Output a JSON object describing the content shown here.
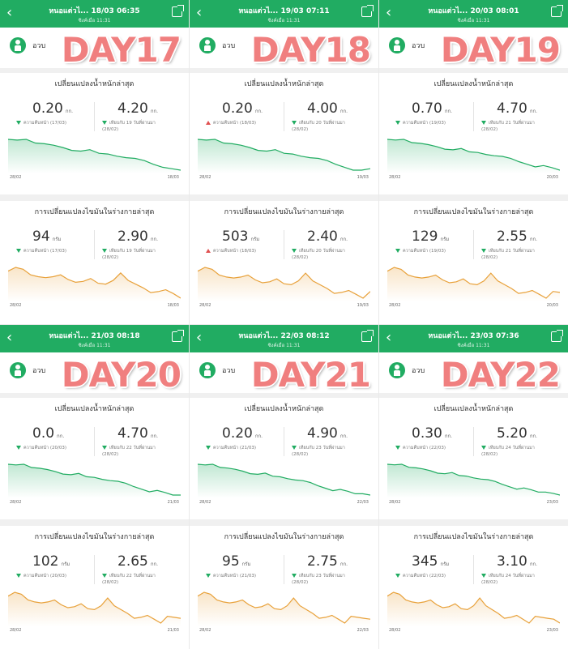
{
  "header": {
    "back_icon": "back-arrow-icon",
    "share_icon": "share-icon",
    "subtitle": "ซิงค์เมื่อ 11:31",
    "accent": "#21ac62"
  },
  "user": {
    "name": "อวบ",
    "avatar_icon": "person-icon"
  },
  "weight_title": "เปลี่ยนแปลงน้ำหนักล่าสุด",
  "fat_title": "การเปลี่ยนแปลงไขมันในร่างกายล่าสุด",
  "colors": {
    "weight_line": "#21ac62",
    "fat_line": "#e8a13a",
    "day_label": "#f07f7f",
    "decrease": "#21ac62",
    "increase": "#e05050"
  },
  "panels": [
    {
      "title": "หนอแต่วไ... 18/03 06:35",
      "day": "DAY17",
      "weight": {
        "value": "0.20",
        "unit": "กก.",
        "note": "ความคืบหน้า (17/03)",
        "dir": "down",
        "total": "4.20",
        "total_unit": "กก.",
        "total_note1": "เทียบกับ 19 วันที่ผ่านมา",
        "total_note2": "(28/02)"
      },
      "fat": {
        "value": "94",
        "unit": "กรัม",
        "note": "ความคืบหน้า (17/03)",
        "dir": "down",
        "total": "2.90",
        "total_unit": "กก.",
        "total_note1": "เทียบกับ 19 วันที่ผ่านมา",
        "total_note2": "(28/02)"
      },
      "x_start": "28/02",
      "x_end": "18/03",
      "weight_series": [
        75.5,
        75.4,
        75.5,
        75.0,
        74.9,
        74.7,
        74.4,
        74.0,
        73.9,
        74.1,
        73.6,
        73.5,
        73.2,
        73.0,
        72.9,
        72.6,
        72.1,
        71.7,
        71.5,
        71.3
      ],
      "fat_series": [
        30.0,
        30.4,
        30.2,
        29.6,
        29.4,
        29.3,
        29.4,
        29.6,
        29.1,
        28.8,
        28.9,
        29.2,
        28.7,
        28.6,
        29.0,
        29.8,
        29.0,
        28.6,
        28.2,
        27.7,
        27.8,
        28.0,
        27.6,
        27.1
      ]
    },
    {
      "title": "หนอแต่วไ... 19/03 07:11",
      "day": "DAY18",
      "weight": {
        "value": "0.20",
        "unit": "กก.",
        "note": "ความคืบหน้า (18/03)",
        "dir": "up",
        "total": "4.00",
        "total_unit": "กก.",
        "total_note1": "เทียบกับ 20 วันที่ผ่านมา",
        "total_note2": "(28/02)"
      },
      "fat": {
        "value": "503",
        "unit": "กรัม",
        "note": "ความคืบหน้า (18/03)",
        "dir": "up",
        "total": "2.40",
        "total_unit": "กก.",
        "total_note1": "เทียบกับ 20 วันที่ผ่านมา",
        "total_note2": "(28/02)"
      },
      "x_start": "28/02",
      "x_end": "19/03",
      "weight_series": [
        75.5,
        75.4,
        75.5,
        75.0,
        74.9,
        74.7,
        74.4,
        74.0,
        73.9,
        74.1,
        73.6,
        73.5,
        73.2,
        73.0,
        72.9,
        72.6,
        72.1,
        71.7,
        71.3,
        71.3,
        71.5
      ],
      "fat_series": [
        30.0,
        30.4,
        30.2,
        29.6,
        29.4,
        29.3,
        29.4,
        29.6,
        29.1,
        28.8,
        28.9,
        29.2,
        28.7,
        28.6,
        29.0,
        29.8,
        29.0,
        28.6,
        28.2,
        27.7,
        27.8,
        28.0,
        27.6,
        27.2,
        27.9
      ]
    },
    {
      "title": "หนอแต่วไ... 20/03 08:01",
      "day": "DAY19",
      "weight": {
        "value": "0.70",
        "unit": "กก.",
        "note": "ความคืบหน้า (19/03)",
        "dir": "down",
        "total": "4.70",
        "total_unit": "กก.",
        "total_note1": "เทียบกับ 21 วันที่ผ่านมา",
        "total_note2": "(28/02)"
      },
      "fat": {
        "value": "129",
        "unit": "กรัม",
        "note": "ความคืบหน้า (19/03)",
        "dir": "down",
        "total": "2.55",
        "total_unit": "กก.",
        "total_note1": "เทียบกับ 21 วันที่ผ่านมา",
        "total_note2": "(28/02)"
      },
      "x_start": "28/02",
      "x_end": "20/03",
      "weight_series": [
        75.5,
        75.4,
        75.5,
        75.0,
        74.9,
        74.7,
        74.4,
        74.0,
        73.9,
        74.1,
        73.6,
        73.5,
        73.2,
        73.0,
        72.9,
        72.6,
        72.1,
        71.7,
        71.3,
        71.5,
        71.2,
        70.8
      ],
      "fat_series": [
        30.0,
        30.4,
        30.2,
        29.6,
        29.4,
        29.3,
        29.4,
        29.6,
        29.1,
        28.8,
        28.9,
        29.2,
        28.7,
        28.6,
        29.0,
        29.8,
        29.0,
        28.6,
        28.2,
        27.7,
        27.8,
        28.0,
        27.6,
        27.2,
        27.9,
        27.8
      ]
    },
    {
      "title": "หนอแต่วไ... 21/03 08:18",
      "day": "DAY20",
      "weight": {
        "value": "0.0",
        "unit": "กก.",
        "note": "ความคืบหน้า (20/03)",
        "dir": "down",
        "total": "4.70",
        "total_unit": "กก.",
        "total_note1": "เทียบกับ 22 วันที่ผ่านมา",
        "total_note2": "(28/02)"
      },
      "fat": {
        "value": "102",
        "unit": "กรัม",
        "note": "ความคืบหน้า (20/03)",
        "dir": "down",
        "total": "2.65",
        "total_unit": "กก.",
        "total_note1": "เทียบกับ 22 วันที่ผ่านมา",
        "total_note2": "(28/02)"
      },
      "x_start": "28/02",
      "x_end": "21/03",
      "weight_series": [
        75.5,
        75.4,
        75.5,
        75.0,
        74.9,
        74.7,
        74.4,
        74.0,
        73.9,
        74.1,
        73.6,
        73.5,
        73.2,
        73.0,
        72.9,
        72.6,
        72.1,
        71.7,
        71.3,
        71.5,
        71.2,
        70.8,
        70.8
      ],
      "fat_series": [
        30.0,
        30.4,
        30.2,
        29.6,
        29.4,
        29.3,
        29.4,
        29.6,
        29.1,
        28.8,
        28.9,
        29.2,
        28.7,
        28.6,
        29.0,
        29.8,
        29.0,
        28.6,
        28.2,
        27.7,
        27.8,
        28.0,
        27.6,
        27.2,
        27.9,
        27.8,
        27.7
      ]
    },
    {
      "title": "หนอแต่วไ... 22/03 08:12",
      "day": "DAY21",
      "weight": {
        "value": "0.20",
        "unit": "กก.",
        "note": "ความคืบหน้า (21/03)",
        "dir": "down",
        "total": "4.90",
        "total_unit": "กก.",
        "total_note1": "เทียบกับ 23 วันที่ผ่านมา",
        "total_note2": "(28/02)"
      },
      "fat": {
        "value": "95",
        "unit": "กรัม",
        "note": "ความคืบหน้า (21/03)",
        "dir": "down",
        "total": "2.75",
        "total_unit": "กก.",
        "total_note1": "เทียบกับ 23 วันที่ผ่านมา",
        "total_note2": "(28/02)"
      },
      "x_start": "28/02",
      "x_end": "22/03",
      "weight_series": [
        75.5,
        75.4,
        75.5,
        75.0,
        74.9,
        74.7,
        74.4,
        74.0,
        73.9,
        74.1,
        73.6,
        73.5,
        73.2,
        73.0,
        72.9,
        72.6,
        72.1,
        71.7,
        71.3,
        71.5,
        71.2,
        70.8,
        70.8,
        70.6
      ],
      "fat_series": [
        30.0,
        30.4,
        30.2,
        29.6,
        29.4,
        29.3,
        29.4,
        29.6,
        29.1,
        28.8,
        28.9,
        29.2,
        28.7,
        28.6,
        29.0,
        29.8,
        29.0,
        28.6,
        28.2,
        27.7,
        27.8,
        28.0,
        27.6,
        27.2,
        27.9,
        27.8,
        27.7,
        27.6
      ]
    },
    {
      "title": "หนอแต่วไ... 23/03 07:36",
      "day": "DAY22",
      "weight": {
        "value": "0.30",
        "unit": "กก.",
        "note": "ความคืบหน้า (22/03)",
        "dir": "down",
        "total": "5.20",
        "total_unit": "กก.",
        "total_note1": "เทียบกับ 24 วันที่ผ่านมา",
        "total_note2": "(28/02)"
      },
      "fat": {
        "value": "345",
        "unit": "กรัม",
        "note": "ความคืบหน้า (22/03)",
        "dir": "down",
        "total": "3.10",
        "total_unit": "กก.",
        "total_note1": "เทียบกับ 24 วันที่ผ่านมา",
        "total_note2": "(28/02)"
      },
      "x_start": "28/02",
      "x_end": "23/03",
      "weight_series": [
        75.5,
        75.4,
        75.5,
        75.0,
        74.9,
        74.7,
        74.4,
        74.0,
        73.9,
        74.1,
        73.6,
        73.5,
        73.2,
        73.0,
        72.9,
        72.6,
        72.1,
        71.7,
        71.3,
        71.5,
        71.2,
        70.8,
        70.8,
        70.6,
        70.3
      ],
      "fat_series": [
        30.0,
        30.4,
        30.2,
        29.6,
        29.4,
        29.3,
        29.4,
        29.6,
        29.1,
        28.8,
        28.9,
        29.2,
        28.7,
        28.6,
        29.0,
        29.8,
        29.0,
        28.6,
        28.2,
        27.7,
        27.8,
        28.0,
        27.6,
        27.2,
        27.9,
        27.8,
        27.7,
        27.6,
        27.2
      ]
    }
  ]
}
